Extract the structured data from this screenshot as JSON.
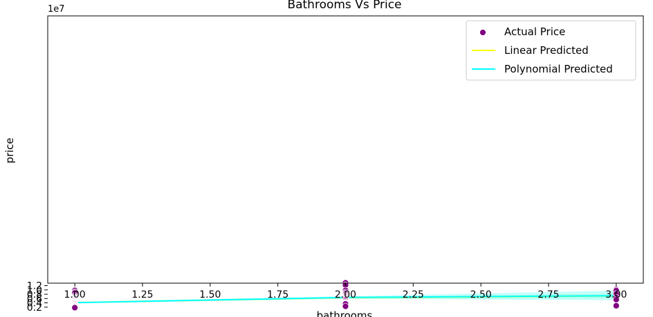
{
  "chart_data": {
    "type": "scatter",
    "title": "Bathrooms Vs Price",
    "xlabel": "bathrooms",
    "ylabel": "price",
    "y_offset_label": "1e7",
    "xlim": [
      0.9,
      3.1
    ],
    "ylim": [
      13150000,
      137300000
    ],
    "ylim_scaled": [
      1.315,
      13.73
    ],
    "x_ticks": [
      1.0,
      1.25,
      1.5,
      1.75,
      2.0,
      2.25,
      2.5,
      2.75,
      3.0
    ],
    "x_tick_labels": [
      "1.00",
      "1.25",
      "1.50",
      "1.75",
      "2.00",
      "2.25",
      "2.50",
      "2.75",
      "3.00"
    ],
    "y_ticks": [
      2000000,
      4000000,
      6000000,
      8000000,
      10000000,
      12000000
    ],
    "y_tick_labels": [
      "0.2",
      "0.4",
      "0.6",
      "0.8",
      "1.0",
      "1.2"
    ],
    "grid": false,
    "legend": {
      "position": "top-right",
      "entries": [
        {
          "label": "Actual Price",
          "kind": "marker",
          "color": "#800080"
        },
        {
          "label": "Linear Predicted",
          "kind": "line",
          "color": "#ffff00"
        },
        {
          "label": "Polynomial Predicted",
          "kind": "line",
          "color": "#00ffff"
        }
      ]
    },
    "series": [
      {
        "name": "Actual Price",
        "type": "scatter",
        "color": "#800080",
        "points": [
          [
            1,
            9800000
          ],
          [
            1,
            9100000
          ],
          [
            1,
            8600000
          ],
          [
            1,
            7350000
          ],
          [
            1,
            6850000
          ],
          [
            1,
            6500000
          ],
          [
            1,
            6200000
          ],
          [
            1,
            5950000
          ],
          [
            1,
            5750000
          ],
          [
            1,
            5500000
          ],
          [
            1,
            5250000
          ],
          [
            1,
            5000000
          ],
          [
            1,
            4800000
          ],
          [
            1,
            4550000
          ],
          [
            1,
            4300000
          ],
          [
            1,
            4100000
          ],
          [
            1,
            3900000
          ],
          [
            1,
            3700000
          ],
          [
            1,
            3450000
          ],
          [
            1,
            3250000
          ],
          [
            1,
            3000000
          ],
          [
            1,
            2750000
          ],
          [
            1,
            2600000
          ],
          [
            1,
            2350000
          ],
          [
            1,
            2150000
          ],
          [
            1,
            1900000
          ],
          [
            1,
            1750000
          ],
          [
            2,
            13300000
          ],
          [
            2,
            12250000
          ],
          [
            2,
            9800000
          ],
          [
            2,
            8900000
          ],
          [
            2,
            8400000
          ],
          [
            2,
            7900000
          ],
          [
            2,
            7350000
          ],
          [
            2,
            7000000
          ],
          [
            2,
            6650000
          ],
          [
            2,
            6300000
          ],
          [
            2,
            5950000
          ],
          [
            2,
            5700000
          ],
          [
            2,
            5550000
          ],
          [
            2,
            5100000
          ],
          [
            2,
            4550000
          ],
          [
            2,
            4200000
          ],
          [
            2,
            3900000
          ],
          [
            2,
            3650000
          ],
          [
            2,
            3500000
          ],
          [
            2,
            2400000
          ],
          [
            3,
            10150000
          ],
          [
            3,
            9681000
          ],
          [
            3,
            8150000
          ],
          [
            3,
            6440000
          ],
          [
            3,
            5530000
          ],
          [
            3,
            2660000
          ]
        ]
      },
      {
        "name": "Linear Predicted",
        "type": "line",
        "color": "#ffff00",
        "x": [
          1,
          2,
          3
        ],
        "y": [
          4150000,
          6400000,
          7250000
        ],
        "band_lower": [
          3950000,
          5950000,
          6100000
        ],
        "band_upper": [
          4350000,
          6800000,
          8400000
        ],
        "band_color": "#7fff7f"
      },
      {
        "name": "Polynomial Predicted",
        "type": "line",
        "color": "#00ffff",
        "x": [
          1,
          2,
          3
        ],
        "y": [
          4100000,
          6500000,
          7300000
        ],
        "band_lower": [
          3800000,
          5900000,
          5200000
        ],
        "band_upper": [
          4500000,
          7050000,
          9750000
        ],
        "band_color": "#00ffff"
      }
    ]
  }
}
